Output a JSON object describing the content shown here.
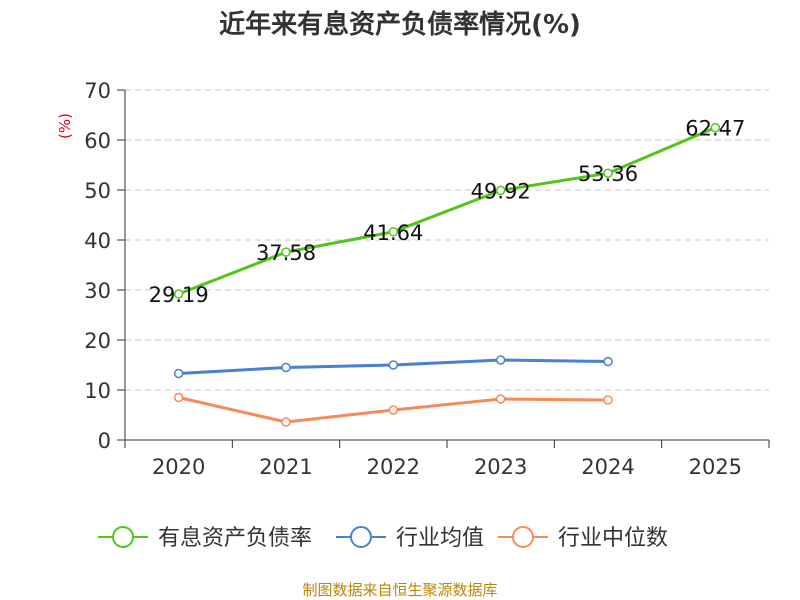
{
  "chart_data": {
    "type": "line",
    "title": "近年来有息资产负债率情况(%)",
    "ylabel": "(%)",
    "xlabel": "",
    "categories": [
      "2020",
      "2021",
      "2022",
      "2023",
      "2024",
      "2025"
    ],
    "ylim": [
      0,
      70
    ],
    "yticks": [
      "0",
      "10",
      "20",
      "30",
      "40",
      "50",
      "60",
      "70"
    ],
    "grid": true,
    "legend_position": "bottom",
    "series": [
      {
        "name": "有息资产负债率",
        "color": "#52c41a",
        "values": [
          29.19,
          37.58,
          41.64,
          49.92,
          53.36,
          62.47
        ],
        "labels": [
          "29.19",
          "37.58",
          "41.64",
          "49.92",
          "53.36",
          "62.47"
        ]
      },
      {
        "name": "行业均值",
        "color": "#4a7fd4",
        "values": [
          13.3,
          14.5,
          15.0,
          16.0,
          15.7,
          null
        ]
      },
      {
        "name": "行业中位数",
        "color": "#f58b5b",
        "values": [
          8.5,
          3.6,
          6.0,
          8.2,
          8.0,
          null
        ]
      }
    ]
  },
  "footer": {
    "source": "制图数据来自恒生聚源数据库"
  }
}
